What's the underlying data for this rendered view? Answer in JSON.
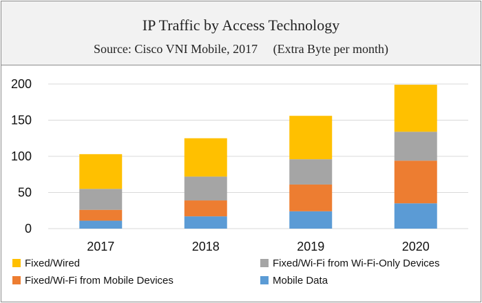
{
  "chart_data": {
    "type": "bar",
    "stacked": true,
    "title": "IP Traffic by Access Technology",
    "subtitle": "Source: Cisco VNI Mobile, 2017     (Extra Byte per month)",
    "categories": [
      "2017",
      "2018",
      "2019",
      "2020"
    ],
    "ylim": [
      0,
      200
    ],
    "yticks": [
      0,
      50,
      100,
      150,
      200
    ],
    "series": [
      {
        "name": "Mobile Data",
        "color": "#5b9bd5",
        "values": [
          11,
          17,
          24,
          35
        ]
      },
      {
        "name": "Fixed/Wi-Fi from Mobile Devices",
        "color": "#ed7d31",
        "values": [
          15,
          22,
          37,
          59
        ]
      },
      {
        "name": "Fixed/Wi-Fi from Wi-Fi-Only Devices",
        "color": "#a5a5a5",
        "values": [
          29,
          33,
          35,
          40
        ]
      },
      {
        "name": "Fixed/Wired",
        "color": "#ffc000",
        "values": [
          48,
          53,
          60,
          65
        ]
      }
    ],
    "legend_order": [
      "Fixed/Wired",
      "Fixed/Wi-Fi from Wi-Fi-Only Devices",
      "Fixed/Wi-Fi from Mobile Devices",
      "Mobile Data"
    ]
  }
}
